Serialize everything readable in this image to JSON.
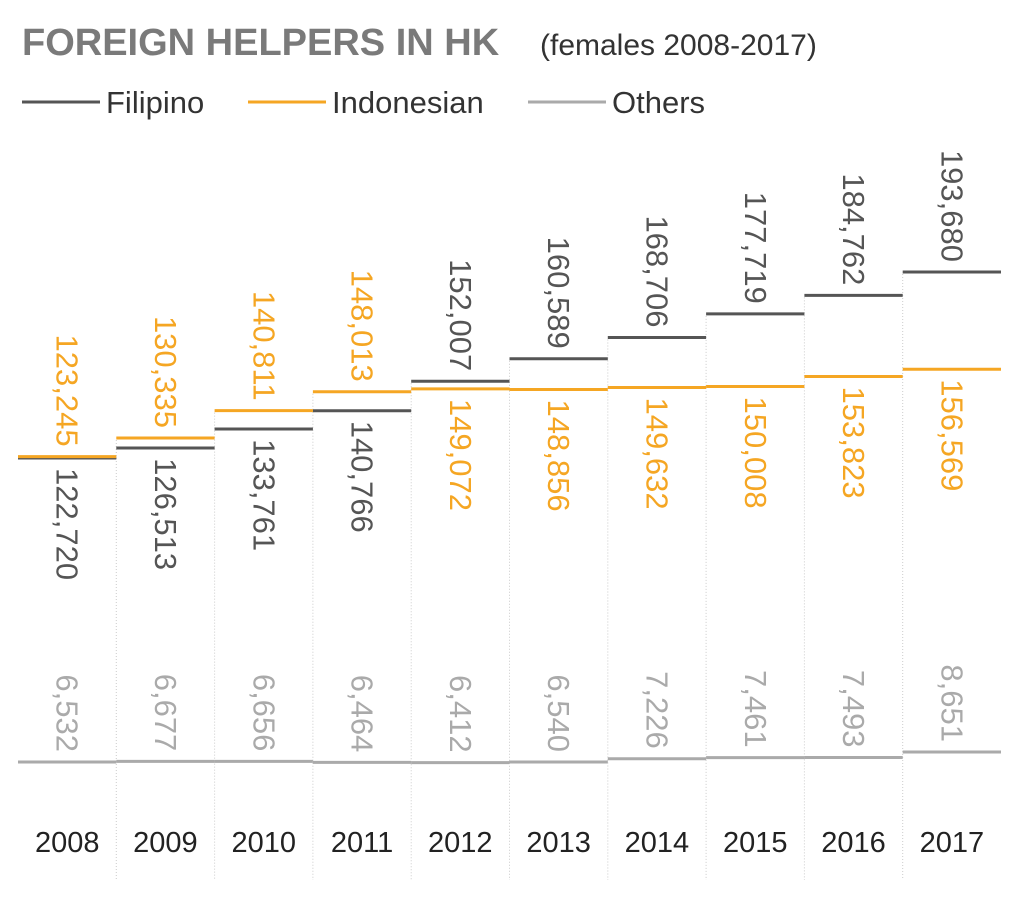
{
  "header": {
    "title": "FOREIGN HELPERS IN HK",
    "subtitle": "(females 2008-2017)"
  },
  "colors": {
    "Filipino": "#555555",
    "Indonesian": "#f5a623",
    "Others": "#aaaaaa",
    "divider": "#cccccc"
  },
  "chart_data": {
    "type": "line",
    "title": "FOREIGN HELPERS IN HK",
    "subtitle": "(females 2008-2017)",
    "x": [
      "2008",
      "2009",
      "2010",
      "2011",
      "2012",
      "2013",
      "2014",
      "2015",
      "2016",
      "2017"
    ],
    "series": [
      {
        "name": "Filipino",
        "values": [
          122720,
          126513,
          133761,
          140766,
          152007,
          160589,
          168706,
          177719,
          184762,
          193680
        ],
        "labels": [
          "122,720",
          "126,513",
          "133,761",
          "140,766",
          "152,007",
          "160,589",
          "168,706",
          "177,719",
          "184,762",
          "193,680"
        ]
      },
      {
        "name": "Indonesian",
        "values": [
          123245,
          130335,
          140811,
          148013,
          149072,
          148856,
          149632,
          150008,
          153823,
          156569
        ],
        "labels": [
          "123,245",
          "130,335",
          "140,811",
          "148,013",
          "149,072",
          "148,856",
          "149,632",
          "150,008",
          "153,823",
          "156,569"
        ]
      },
      {
        "name": "Others",
        "values": [
          6532,
          6677,
          6656,
          6464,
          6412,
          6540,
          7226,
          7461,
          7493,
          8651
        ],
        "labels": [
          "6,532",
          "6,677",
          "6,656",
          "6,464",
          "6,412",
          "6,540",
          "7,226",
          "7,461",
          "7,493",
          "8,651"
        ]
      }
    ],
    "legend": "top-left",
    "grid": false
  }
}
